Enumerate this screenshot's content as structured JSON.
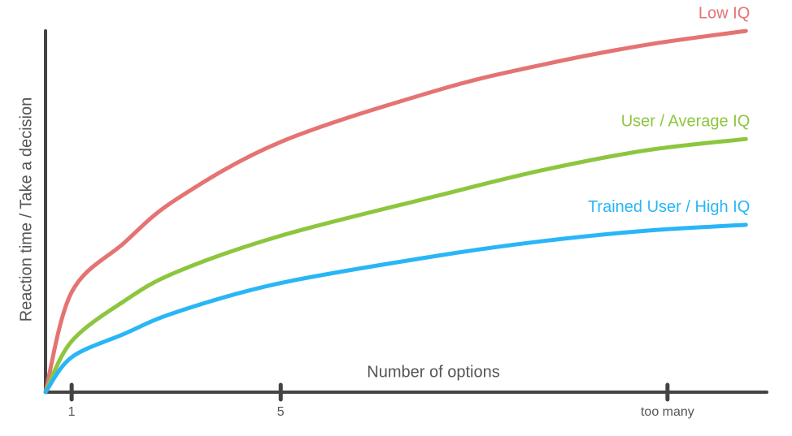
{
  "chart_data": {
    "type": "line",
    "x_label": "Number of options",
    "y_label": "Reaction time / Take a decision",
    "x": [
      0.5,
      1,
      2,
      3,
      5,
      8,
      10,
      12,
      13.9
    ],
    "series": [
      {
        "name": "Low IQ",
        "color": "#e57373",
        "values": [
          0,
          27.5,
          41,
          53,
          68.8,
          83,
          90,
          95.5,
          99.3
        ]
      },
      {
        "name": "User / Average IQ",
        "color": "#8cc63e",
        "values": [
          0,
          14,
          25,
          33,
          43,
          54,
          61,
          66.5,
          69.6
        ]
      },
      {
        "name": "Trained User / High IQ",
        "color": "#29b6f6",
        "values": [
          0,
          9.6,
          16,
          22,
          30,
          37.5,
          41.5,
          44.4,
          46
        ]
      }
    ],
    "xlim": [
      0.5,
      14.3
    ],
    "xticks": [
      1,
      5,
      {
        "value": 12.4,
        "label": "too many"
      }
    ],
    "ylim": [
      0,
      100
    ],
    "grid": false
  }
}
